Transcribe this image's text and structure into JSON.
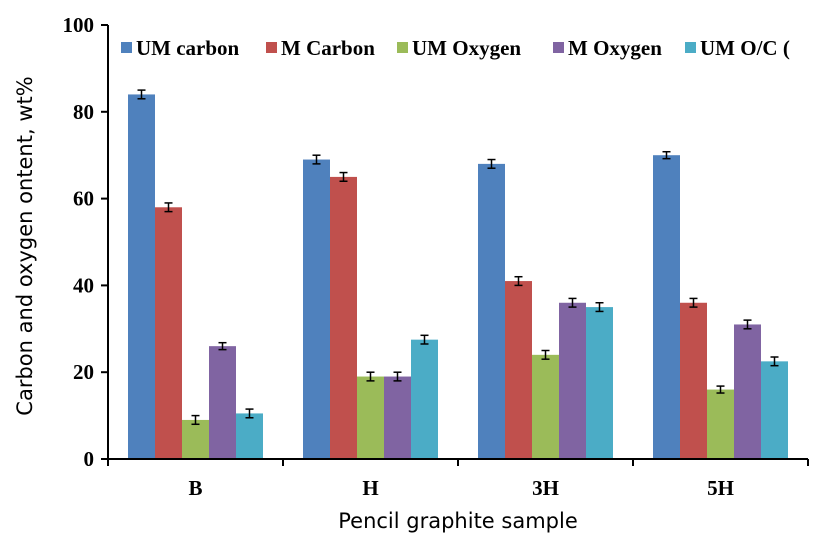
{
  "chart_data": {
    "type": "bar",
    "title": "",
    "xlabel": "Pencil graphite sample",
    "ylabel": "Carbon and  oxygen ontent, wt%",
    "categories": [
      "B",
      "H",
      "3H",
      "5H"
    ],
    "ylim": [
      0,
      100
    ],
    "yticks": [
      0,
      20,
      40,
      60,
      80,
      100
    ],
    "grid": false,
    "legend_position": "top",
    "series": [
      {
        "name": "UM carbon",
        "color": "#4F81BD",
        "values": [
          84,
          69,
          68,
          70
        ],
        "errors": [
          1,
          1,
          1,
          0.8
        ]
      },
      {
        "name": "M Carbon",
        "color": "#C0504D",
        "values": [
          58,
          65,
          41,
          36
        ],
        "errors": [
          1,
          1,
          1,
          1
        ]
      },
      {
        "name": "UM Oxygen",
        "color": "#9BBB59",
        "values": [
          9,
          19,
          24,
          16
        ],
        "errors": [
          1,
          1,
          1,
          0.8
        ]
      },
      {
        "name": "M Oxygen",
        "color": "#8064A2",
        "values": [
          26,
          19,
          36,
          31
        ],
        "errors": [
          0.8,
          1,
          1,
          1
        ]
      },
      {
        "name": "UM O/C (",
        "color": "#4BACC6",
        "values": [
          10.5,
          27.5,
          35,
          22.5
        ],
        "errors": [
          1,
          1,
          1,
          1
        ]
      }
    ]
  }
}
